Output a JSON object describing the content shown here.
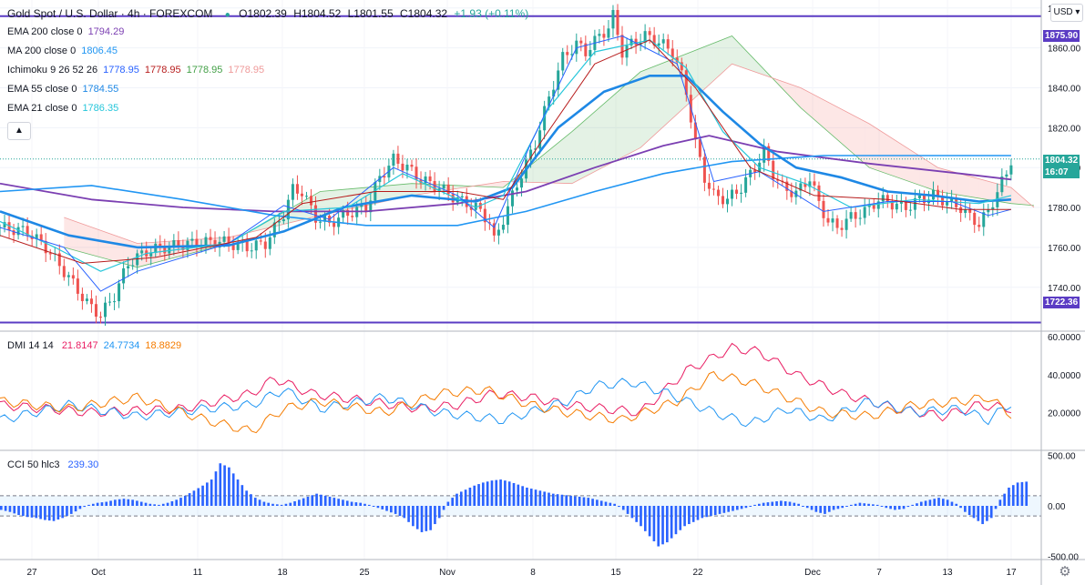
{
  "header": {
    "symbol": "Gold Spot / U.S. Dollar · 4h · FOREXCOM",
    "open": "O1802.39",
    "high": "H1804.52",
    "low": "L1801.55",
    "close": "C1804.32",
    "change": "+1.93 (+0.11%)",
    "currency": "USD"
  },
  "indicators": [
    {
      "name": "EMA 200 close 0",
      "values": [
        {
          "v": "1794.29",
          "color": "#7b3fb2"
        }
      ]
    },
    {
      "name": "MA 200 close 0",
      "values": [
        {
          "v": "1806.45",
          "color": "#2196f3"
        }
      ]
    },
    {
      "name": "Ichimoku 9 26 52 26",
      "values": [
        {
          "v": "1778.95",
          "color": "#2962ff"
        },
        {
          "v": "1778.95",
          "color": "#b71c1c"
        },
        {
          "v": "1778.95",
          "color": "#43a047"
        },
        {
          "v": "1778.95",
          "color": "#ef9a9a"
        }
      ]
    },
    {
      "name": "EMA 55 close 0",
      "values": [
        {
          "v": "1784.55",
          "color": "#1e88e5"
        }
      ]
    },
    {
      "name": "EMA 21 close 0",
      "values": [
        {
          "v": "1786.35",
          "color": "#26c6da"
        }
      ]
    }
  ],
  "dmi": {
    "name": "DMI 14 14",
    "values": [
      {
        "v": "21.8147",
        "color": "#e91e63"
      },
      {
        "v": "24.7734",
        "color": "#2196f3"
      },
      {
        "v": "18.8829",
        "color": "#f57c00"
      }
    ]
  },
  "cci": {
    "name": "CCI 50 hlc3",
    "value": "239.30",
    "color": "#2962ff"
  },
  "price_tags": {
    "top_line": "1875.90",
    "bottom_line": "1722.36",
    "last_price": "1804.32",
    "countdown": "16:07"
  },
  "chart_data": {
    "type": "line",
    "title": "",
    "main_axis": {
      "ticks": [
        "1880.00",
        "1860.00",
        "1840.00",
        "1820.00",
        "1800.00",
        "1780.00",
        "1760.00",
        "1740.00"
      ],
      "ylim": [
        1718,
        1884
      ]
    },
    "dmi_axis": {
      "ticks": [
        "60.0000",
        "40.0000",
        "20.0000"
      ],
      "ylim": [
        0,
        62
      ]
    },
    "cci_axis": {
      "ticks": [
        "500.00",
        "0.00",
        "-500.00"
      ],
      "ylim": [
        -530,
        530
      ]
    },
    "x_ticks": [
      "27",
      "Oct",
      "11",
      "18",
      "25",
      "Nov",
      "8",
      "15",
      "22",
      "Dec",
      "7",
      "13",
      "17"
    ],
    "horizontal_levels": [
      1875.9,
      1722.36
    ],
    "last_price": 1804.32,
    "price_path": [
      [
        0,
        1770
      ],
      [
        6,
        1768
      ],
      [
        10,
        1760
      ],
      [
        15,
        1745
      ],
      [
        19,
        1732
      ],
      [
        22,
        1726
      ],
      [
        25,
        1736
      ],
      [
        28,
        1752
      ],
      [
        32,
        1758
      ],
      [
        36,
        1760
      ],
      [
        42,
        1762
      ],
      [
        48,
        1763
      ],
      [
        54,
        1760
      ],
      [
        58,
        1762
      ],
      [
        62,
        1777
      ],
      [
        64,
        1789
      ],
      [
        66,
        1788
      ],
      [
        69,
        1775
      ],
      [
        72,
        1772
      ],
      [
        76,
        1777
      ],
      [
        80,
        1780
      ],
      [
        83,
        1795
      ],
      [
        86,
        1804
      ],
      [
        89,
        1800
      ],
      [
        92,
        1794
      ],
      [
        96,
        1790
      ],
      [
        100,
        1784
      ],
      [
        104,
        1780
      ],
      [
        107,
        1773
      ],
      [
        108,
        1763
      ],
      [
        111,
        1780
      ],
      [
        114,
        1797
      ],
      [
        117,
        1812
      ],
      [
        119,
        1828
      ],
      [
        121,
        1842
      ],
      [
        123,
        1855
      ],
      [
        126,
        1862
      ],
      [
        128,
        1858
      ],
      [
        131,
        1866
      ],
      [
        133,
        1870
      ],
      [
        134,
        1876
      ],
      [
        136,
        1858
      ],
      [
        138,
        1862
      ],
      [
        141,
        1866
      ],
      [
        144,
        1863
      ],
      [
        147,
        1858
      ],
      [
        149,
        1846
      ],
      [
        150,
        1838
      ],
      [
        152,
        1812
      ],
      [
        154,
        1795
      ],
      [
        156,
        1786
      ],
      [
        159,
        1784
      ],
      [
        162,
        1790
      ],
      [
        165,
        1800
      ],
      [
        167,
        1808
      ],
      [
        169,
        1797
      ],
      [
        171,
        1790
      ],
      [
        174,
        1787
      ],
      [
        177,
        1795
      ],
      [
        179,
        1782
      ],
      [
        181,
        1773
      ],
      [
        183,
        1770
      ],
      [
        186,
        1775
      ],
      [
        189,
        1778
      ],
      [
        192,
        1784
      ],
      [
        195,
        1782
      ],
      [
        198,
        1780
      ],
      [
        201,
        1784
      ],
      [
        204,
        1786
      ],
      [
        207,
        1783
      ],
      [
        210,
        1780
      ],
      [
        212,
        1775
      ],
      [
        214,
        1772
      ],
      [
        216,
        1778
      ],
      [
        218,
        1788
      ],
      [
        220,
        1797
      ],
      [
        221,
        1804
      ]
    ],
    "series": [
      {
        "key": "ema200",
        "color": "#7b3fb2",
        "width": 1.8,
        "points": [
          [
            0,
            1792
          ],
          [
            20,
            1784
          ],
          [
            40,
            1780
          ],
          [
            60,
            1778
          ],
          [
            80,
            1778
          ],
          [
            100,
            1782
          ],
          [
            115,
            1788
          ],
          [
            130,
            1800
          ],
          [
            145,
            1811
          ],
          [
            155,
            1816
          ],
          [
            170,
            1808
          ],
          [
            190,
            1802
          ],
          [
            210,
            1797
          ],
          [
            221,
            1794
          ]
        ]
      },
      {
        "key": "ma200",
        "color": "#2196f3",
        "width": 1.6,
        "points": [
          [
            0,
            1788
          ],
          [
            20,
            1791
          ],
          [
            40,
            1784
          ],
          [
            60,
            1776
          ],
          [
            80,
            1771
          ],
          [
            100,
            1771
          ],
          [
            115,
            1778
          ],
          [
            130,
            1788
          ],
          [
            145,
            1797
          ],
          [
            160,
            1803
          ],
          [
            180,
            1806
          ],
          [
            200,
            1806
          ],
          [
            221,
            1806
          ]
        ]
      },
      {
        "key": "ema55",
        "color": "#1e88e5",
        "width": 2.6,
        "points": [
          [
            0,
            1778
          ],
          [
            15,
            1766
          ],
          [
            30,
            1760
          ],
          [
            50,
            1761
          ],
          [
            62,
            1768
          ],
          [
            75,
            1780
          ],
          [
            90,
            1786
          ],
          [
            104,
            1783
          ],
          [
            112,
            1790
          ],
          [
            122,
            1820
          ],
          [
            132,
            1838
          ],
          [
            142,
            1846
          ],
          [
            150,
            1846
          ],
          [
            158,
            1828
          ],
          [
            166,
            1812
          ],
          [
            174,
            1800
          ],
          [
            184,
            1795
          ],
          [
            194,
            1788
          ],
          [
            204,
            1786
          ],
          [
            214,
            1783
          ],
          [
            221,
            1784
          ]
        ]
      },
      {
        "key": "ema21",
        "color": "#26c6da",
        "width": 1.2,
        "points": [
          [
            0,
            1773
          ],
          [
            12,
            1760
          ],
          [
            22,
            1748
          ],
          [
            32,
            1757
          ],
          [
            50,
            1762
          ],
          [
            62,
            1778
          ],
          [
            76,
            1780
          ],
          [
            88,
            1797
          ],
          [
            104,
            1780
          ],
          [
            110,
            1786
          ],
          [
            120,
            1830
          ],
          [
            130,
            1858
          ],
          [
            142,
            1864
          ],
          [
            150,
            1850
          ],
          [
            158,
            1818
          ],
          [
            166,
            1800
          ],
          [
            176,
            1792
          ],
          [
            186,
            1780
          ],
          [
            200,
            1784
          ],
          [
            214,
            1782
          ],
          [
            221,
            1786
          ]
        ]
      },
      {
        "key": "tenkan",
        "color": "#2962ff",
        "width": 1,
        "points": [
          [
            0,
            1770
          ],
          [
            14,
            1760
          ],
          [
            22,
            1738
          ],
          [
            30,
            1748
          ],
          [
            50,
            1762
          ],
          [
            62,
            1781
          ],
          [
            72,
            1774
          ],
          [
            86,
            1800
          ],
          [
            100,
            1786
          ],
          [
            108,
            1770
          ],
          [
            116,
            1812
          ],
          [
            126,
            1860
          ],
          [
            136,
            1866
          ],
          [
            148,
            1852
          ],
          [
            156,
            1793
          ],
          [
            166,
            1798
          ],
          [
            180,
            1778
          ],
          [
            194,
            1783
          ],
          [
            208,
            1783
          ],
          [
            216,
            1776
          ],
          [
            221,
            1779
          ]
        ]
      },
      {
        "key": "kijun",
        "color": "#b71c1c",
        "width": 1,
        "points": [
          [
            0,
            1766
          ],
          [
            18,
            1752
          ],
          [
            34,
            1755
          ],
          [
            56,
            1765
          ],
          [
            66,
            1782
          ],
          [
            82,
            1788
          ],
          [
            100,
            1788
          ],
          [
            110,
            1784
          ],
          [
            118,
            1812
          ],
          [
            130,
            1852
          ],
          [
            142,
            1864
          ],
          [
            152,
            1840
          ],
          [
            164,
            1800
          ],
          [
            178,
            1786
          ],
          [
            194,
            1784
          ],
          [
            210,
            1779
          ],
          [
            221,
            1779
          ]
        ]
      }
    ],
    "cloud": {
      "spanA": [
        [
          14,
          1760
        ],
        [
          30,
          1750
        ],
        [
          50,
          1762
        ],
        [
          70,
          1788
        ],
        [
          90,
          1792
        ],
        [
          110,
          1790
        ],
        [
          125,
          1818
        ],
        [
          140,
          1848
        ],
        [
          160,
          1866
        ],
        [
          175,
          1830
        ],
        [
          190,
          1800
        ],
        [
          205,
          1788
        ],
        [
          221,
          1782
        ],
        [
          226,
          1781
        ]
      ],
      "spanB": [
        [
          14,
          1775
        ],
        [
          30,
          1762
        ],
        [
          50,
          1765
        ],
        [
          70,
          1776
        ],
        [
          90,
          1786
        ],
        [
          110,
          1793
        ],
        [
          125,
          1792
        ],
        [
          140,
          1810
        ],
        [
          160,
          1852
        ],
        [
          175,
          1840
        ],
        [
          190,
          1822
        ],
        [
          205,
          1800
        ],
        [
          221,
          1790
        ],
        [
          226,
          1780
        ]
      ]
    },
    "dmi_series": [
      {
        "key": "adx",
        "color": "#e91e63",
        "points": [
          [
            0,
            24
          ],
          [
            20,
            20
          ],
          [
            40,
            22
          ],
          [
            55,
            30
          ],
          [
            60,
            38
          ],
          [
            68,
            30
          ],
          [
            80,
            26
          ],
          [
            92,
            22
          ],
          [
            100,
            24
          ],
          [
            108,
            30
          ],
          [
            116,
            28
          ],
          [
            124,
            24
          ],
          [
            140,
            20
          ],
          [
            150,
            42
          ],
          [
            160,
            54
          ],
          [
            166,
            52
          ],
          [
            174,
            40
          ],
          [
            184,
            30
          ],
          [
            196,
            22
          ],
          [
            206,
            18
          ],
          [
            214,
            24
          ],
          [
            221,
            22
          ]
        ]
      },
      {
        "key": "plus",
        "color": "#2196f3",
        "points": [
          [
            0,
            16
          ],
          [
            15,
            24
          ],
          [
            30,
            18
          ],
          [
            45,
            22
          ],
          [
            55,
            24
          ],
          [
            62,
            32
          ],
          [
            70,
            22
          ],
          [
            84,
            28
          ],
          [
            96,
            20
          ],
          [
            110,
            16
          ],
          [
            124,
            26
          ],
          [
            130,
            34
          ],
          [
            138,
            36
          ],
          [
            146,
            30
          ],
          [
            156,
            20
          ],
          [
            164,
            14
          ],
          [
            172,
            22
          ],
          [
            180,
            16
          ],
          [
            190,
            26
          ],
          [
            200,
            20
          ],
          [
            210,
            22
          ],
          [
            216,
            16
          ],
          [
            221,
            25
          ]
        ]
      },
      {
        "key": "minus",
        "color": "#f57c00",
        "points": [
          [
            0,
            26
          ],
          [
            15,
            22
          ],
          [
            30,
            28
          ],
          [
            45,
            16
          ],
          [
            55,
            10
          ],
          [
            62,
            22
          ],
          [
            70,
            26
          ],
          [
            84,
            20
          ],
          [
            96,
            30
          ],
          [
            106,
            32
          ],
          [
            116,
            24
          ],
          [
            124,
            20
          ],
          [
            136,
            16
          ],
          [
            148,
            26
          ],
          [
            156,
            40
          ],
          [
            164,
            36
          ],
          [
            172,
            28
          ],
          [
            180,
            20
          ],
          [
            190,
            18
          ],
          [
            200,
            24
          ],
          [
            210,
            26
          ],
          [
            216,
            28
          ],
          [
            221,
            19
          ]
        ]
      }
    ],
    "cci_bars": [
      -40,
      -60,
      -90,
      -110,
      -120,
      -140,
      -150,
      -120,
      -80,
      -30,
      10,
      30,
      40,
      60,
      70,
      60,
      40,
      20,
      10,
      30,
      60,
      100,
      150,
      200,
      260,
      420,
      380,
      260,
      150,
      80,
      40,
      20,
      10,
      30,
      60,
      90,
      120,
      100,
      80,
      60,
      40,
      30,
      10,
      -20,
      -50,
      -80,
      -120,
      -200,
      -260,
      -240,
      -120,
      40,
      120,
      160,
      200,
      230,
      250,
      260,
      240,
      210,
      180,
      160,
      140,
      120,
      110,
      100,
      90,
      80,
      60,
      40,
      20,
      -40,
      -120,
      -200,
      -300,
      -400,
      -360,
      -280,
      -200,
      -160,
      -120,
      -100,
      -80,
      -60,
      -40,
      -20,
      10,
      30,
      40,
      50,
      40,
      20,
      -20,
      -60,
      -80,
      -40,
      -20,
      10,
      30,
      20,
      10,
      -20,
      -40,
      -30,
      10,
      40,
      60,
      80,
      60,
      20,
      -60,
      -120,
      -180,
      -120,
      60,
      180,
      230,
      239
    ]
  }
}
